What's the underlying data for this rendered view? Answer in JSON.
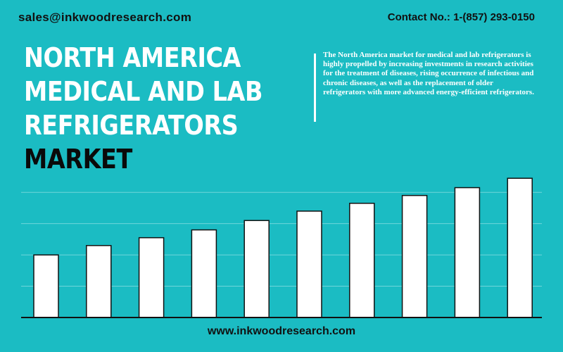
{
  "header": {
    "email": "sales@inkwoodresearch.com",
    "contact": "Contact No.: 1-(857) 293-0150"
  },
  "title": {
    "line1": "NORTH AMERICA",
    "line2": "MEDICAL AND LAB",
    "line3": "REFRIGERATORS",
    "line4": "MARKET"
  },
  "description": "The North America market for medical and lab refrigerators is highly propelled by increasing investments in research activities for the treatment of diseases, rising occurrence of infectious and chronic diseases, as well as the replacement of older refrigerators with more advanced energy-efficient refrigerators.",
  "footer": {
    "website": "www.inkwoodresearch.com"
  },
  "colors": {
    "background": "#1bbcc3",
    "bar": "#ffffff",
    "bar_outline": "#111111",
    "gridline": "#6fd5da"
  },
  "chart_data": {
    "type": "bar",
    "categories": [
      "",
      "",
      "",
      "",
      "",
      "",
      "",
      "",
      "",
      ""
    ],
    "values": [
      20,
      23,
      25.5,
      28,
      31,
      34,
      36.5,
      39,
      41.5,
      44.5
    ],
    "ylim": [
      0,
      45
    ],
    "grid": true,
    "title": "",
    "xlabel": "",
    "ylabel": ""
  }
}
